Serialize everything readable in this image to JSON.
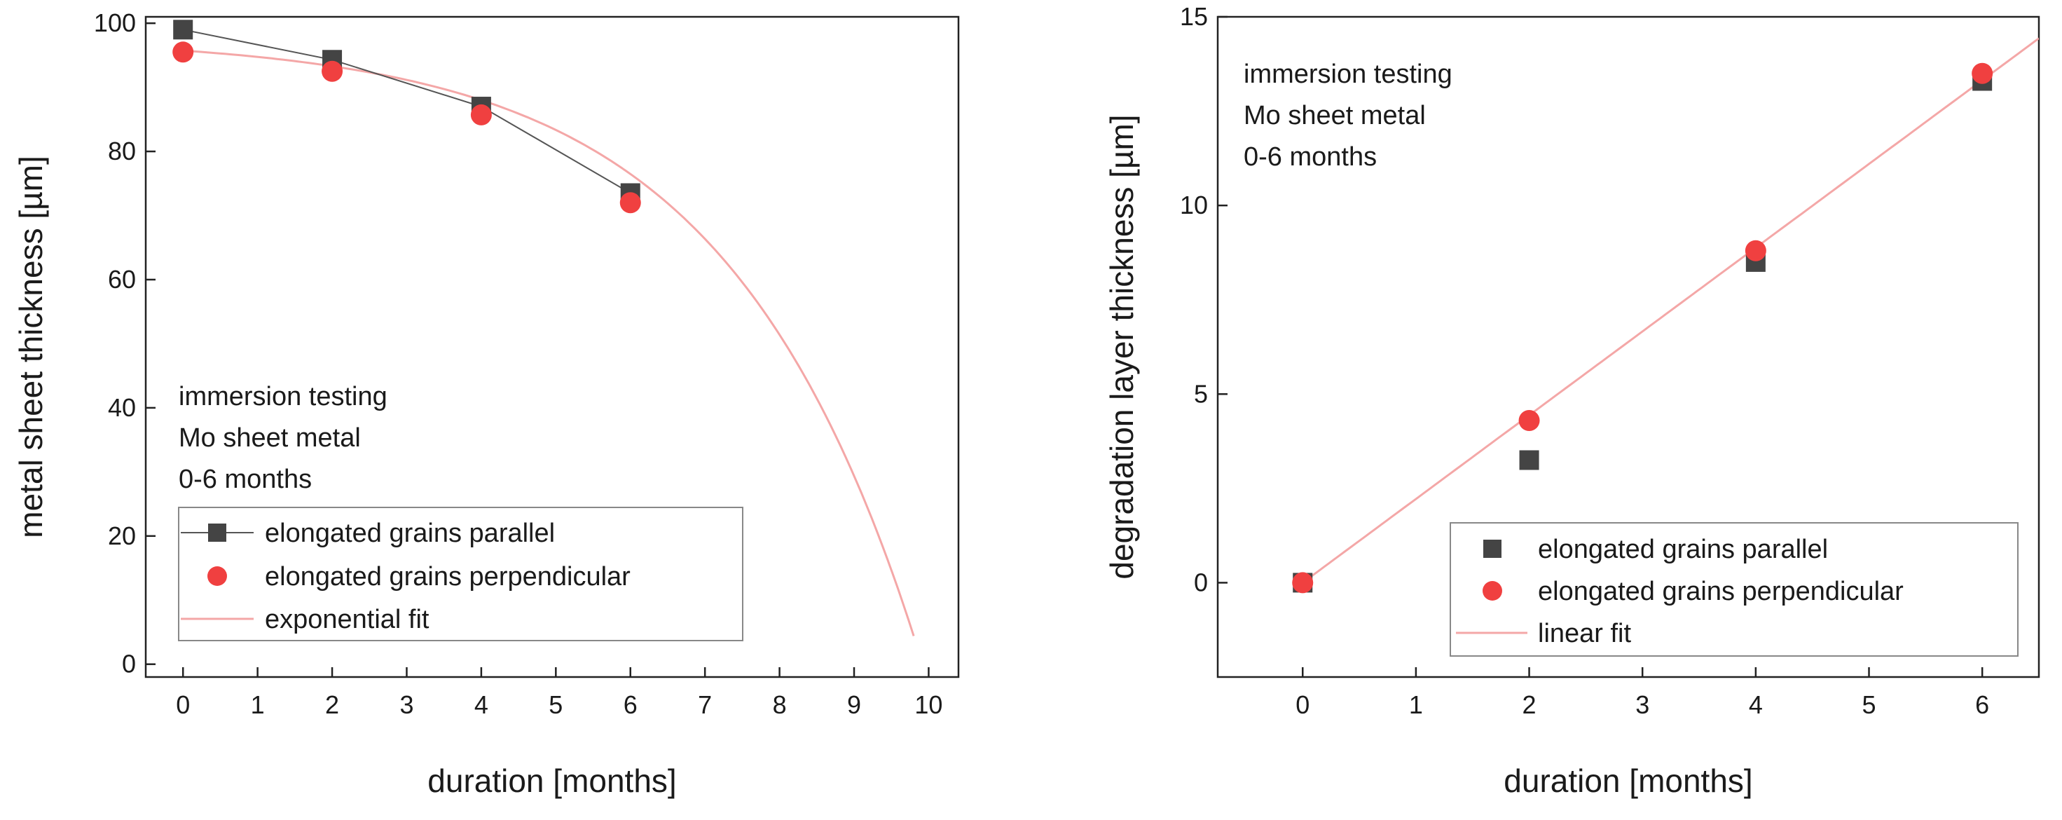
{
  "chart_data": [
    {
      "type": "scatter",
      "xlabel": "duration [months]",
      "ylabel": "metal sheet thickness [µm]",
      "xlim": [
        -0.5,
        10.4
      ],
      "ylim": [
        -2,
        101
      ],
      "xticks": [
        0,
        1,
        2,
        3,
        4,
        5,
        6,
        7,
        8,
        9,
        10
      ],
      "yticks": [
        0,
        20,
        40,
        60,
        80,
        100
      ],
      "xtick_labels": [
        "0",
        "1",
        "2",
        "3",
        "4",
        "5",
        "6",
        "7",
        "8",
        "9",
        "10"
      ],
      "ytick_labels": [
        "0",
        "20",
        "40",
        "60",
        "80",
        "100"
      ],
      "annotation": [
        "immersion testing",
        "Mo sheet metal",
        "0-6 months"
      ],
      "legend_position": "lower-left",
      "series": [
        {
          "name": "elongated grains parallel",
          "marker": "square",
          "connected": true,
          "color": "#444444",
          "x": [
            0,
            2,
            4,
            6
          ],
          "y": [
            99,
            94.3,
            87,
            73.5
          ]
        },
        {
          "name": "elongated grains perpendicular",
          "marker": "circle",
          "connected": false,
          "color": "#f04040",
          "x": [
            0,
            2,
            4,
            6
          ],
          "y": [
            95.5,
            92.5,
            85.7,
            72
          ]
        },
        {
          "name": "exponential fit",
          "marker": "line",
          "color": "#f4a7a7",
          "fit": {
            "form": "y0 - a*exp(b*x)",
            "y0": 97.8,
            "a": 2.07,
            "b": 0.3887
          },
          "x_range": [
            0,
            9.8
          ]
        }
      ]
    },
    {
      "type": "scatter",
      "xlabel": "duration [months]",
      "ylabel": "degradation layer thickness [µm]",
      "xlim": [
        -0.75,
        6.5
      ],
      "ylim": [
        -2.5,
        15
      ],
      "xticks": [
        0,
        1,
        2,
        3,
        4,
        5,
        6
      ],
      "yticks": [
        0,
        5,
        10,
        15
      ],
      "xtick_labels": [
        "0",
        "1",
        "2",
        "3",
        "4",
        "5",
        "6"
      ],
      "ytick_labels": [
        "0",
        "5",
        "10",
        "15"
      ],
      "annotation": [
        "immersion testing",
        "Mo sheet metal",
        "0-6 months"
      ],
      "legend_position": "lower-right",
      "series": [
        {
          "name": "elongated grains parallel",
          "marker": "square",
          "connected": false,
          "color": "#444444",
          "x": [
            0,
            2,
            4,
            6
          ],
          "y": [
            0,
            3.25,
            8.5,
            13.3
          ]
        },
        {
          "name": "elongated grains perpendicular",
          "marker": "circle",
          "connected": false,
          "color": "#f04040",
          "x": [
            0,
            2,
            4,
            6
          ],
          "y": [
            0,
            4.3,
            8.8,
            13.5
          ]
        },
        {
          "name": "linear fit",
          "marker": "line",
          "color": "#f4a7a7",
          "fit": {
            "form": "a + b*x",
            "a": 0,
            "b": 2.22
          },
          "x_range": [
            0,
            6.5
          ]
        }
      ]
    }
  ]
}
